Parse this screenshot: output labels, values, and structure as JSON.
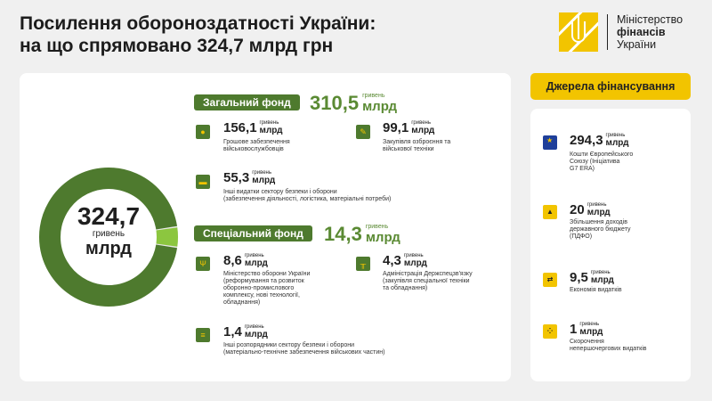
{
  "title": {
    "line1": "Посилення обороноздатності України:",
    "line2": "на що спрямовано 324,7 млрд грн"
  },
  "logo": {
    "line1": "Міністерство",
    "line2": "фінансів",
    "line3": "України"
  },
  "donut": {
    "total": "324,7",
    "unit_small": "гривень",
    "unit_big": "млрд",
    "colors": {
      "general": "#4e7a2e",
      "special": "#8cc63f"
    },
    "general_value": 310.5,
    "special_value": 14.3
  },
  "general_fund": {
    "label": "Загальний фонд",
    "value": "310,5",
    "unit_small": "гривень",
    "unit_big": "млрд",
    "items": [
      {
        "icon": "soldier-icon",
        "value": "156,1",
        "unit_small": "гривень",
        "unit_big": "млрд",
        "desc1": "Грошове забезпечення",
        "desc2": "військовослужбовців",
        "desc3": ""
      },
      {
        "icon": "rifle-icon",
        "value": "99,1",
        "unit_small": "гривень",
        "unit_big": "млрд",
        "desc1": "Закупівля озброєння та",
        "desc2": "військової техніки",
        "desc3": ""
      },
      {
        "icon": "truck-icon",
        "value": "55,3",
        "unit_small": "гривень",
        "unit_big": "млрд",
        "desc1": "Інші видатки сектору безпеки і оборони",
        "desc2": "(забезпечення діяльності, логістика, матеріальні потреби)",
        "desc3": ""
      }
    ]
  },
  "special_fund": {
    "label": "Спеціальний фонд",
    "value": "14,3",
    "unit_small": "гривень",
    "unit_big": "млрд",
    "items": [
      {
        "icon": "trident-icon",
        "value": "8,6",
        "unit_small": "гривень",
        "unit_big": "млрд",
        "desc1": "Міністерство оборони України",
        "desc2": "(реформування та розвиток",
        "desc3": "оборонно-промислового",
        "desc4": "комплексу, нові технології,",
        "desc5": "обладнання)"
      },
      {
        "icon": "antenna-icon",
        "value": "4,3",
        "unit_small": "гривень",
        "unit_big": "млрд",
        "desc1": "Адміністрація Держспецзв'язку",
        "desc2": "(закупівля спеціальної техніки",
        "desc3": "та обладнання)",
        "desc4": "",
        "desc5": ""
      },
      {
        "icon": "list-icon",
        "value": "1,4",
        "unit_small": "гривень",
        "unit_big": "млрд",
        "desc1": "Інші розпорядники сектору безпеки і оборони",
        "desc2": "(матеріально-технічне забезпечення військових частин)",
        "desc3": "",
        "desc4": "",
        "desc5": ""
      }
    ]
  },
  "sources": {
    "label": "Джерела фінансування",
    "items": [
      {
        "icon": "eu-flag-icon",
        "value": "294,3",
        "unit_small": "гривень",
        "unit_big": "млрд",
        "desc1": "Кошти Європейського",
        "desc2": "Союзу (Ініціатива",
        "desc3": "G7 ERA)"
      },
      {
        "icon": "chart-icon",
        "value": "20",
        "unit_small": "гривень",
        "unit_big": "млрд",
        "desc1": "Збільшення доходів",
        "desc2": "державного бюджету",
        "desc3": "(ПДФО)"
      },
      {
        "icon": "arrows-icon",
        "value": "9,5",
        "unit_small": "гривень",
        "unit_big": "млрд",
        "desc1": "Економія видатків",
        "desc2": "",
        "desc3": ""
      },
      {
        "icon": "dots-icon",
        "value": "1",
        "unit_small": "гривень",
        "unit_big": "млрд",
        "desc1": "Скорочення",
        "desc2": "непершочергових видатків",
        "desc3": ""
      }
    ]
  }
}
